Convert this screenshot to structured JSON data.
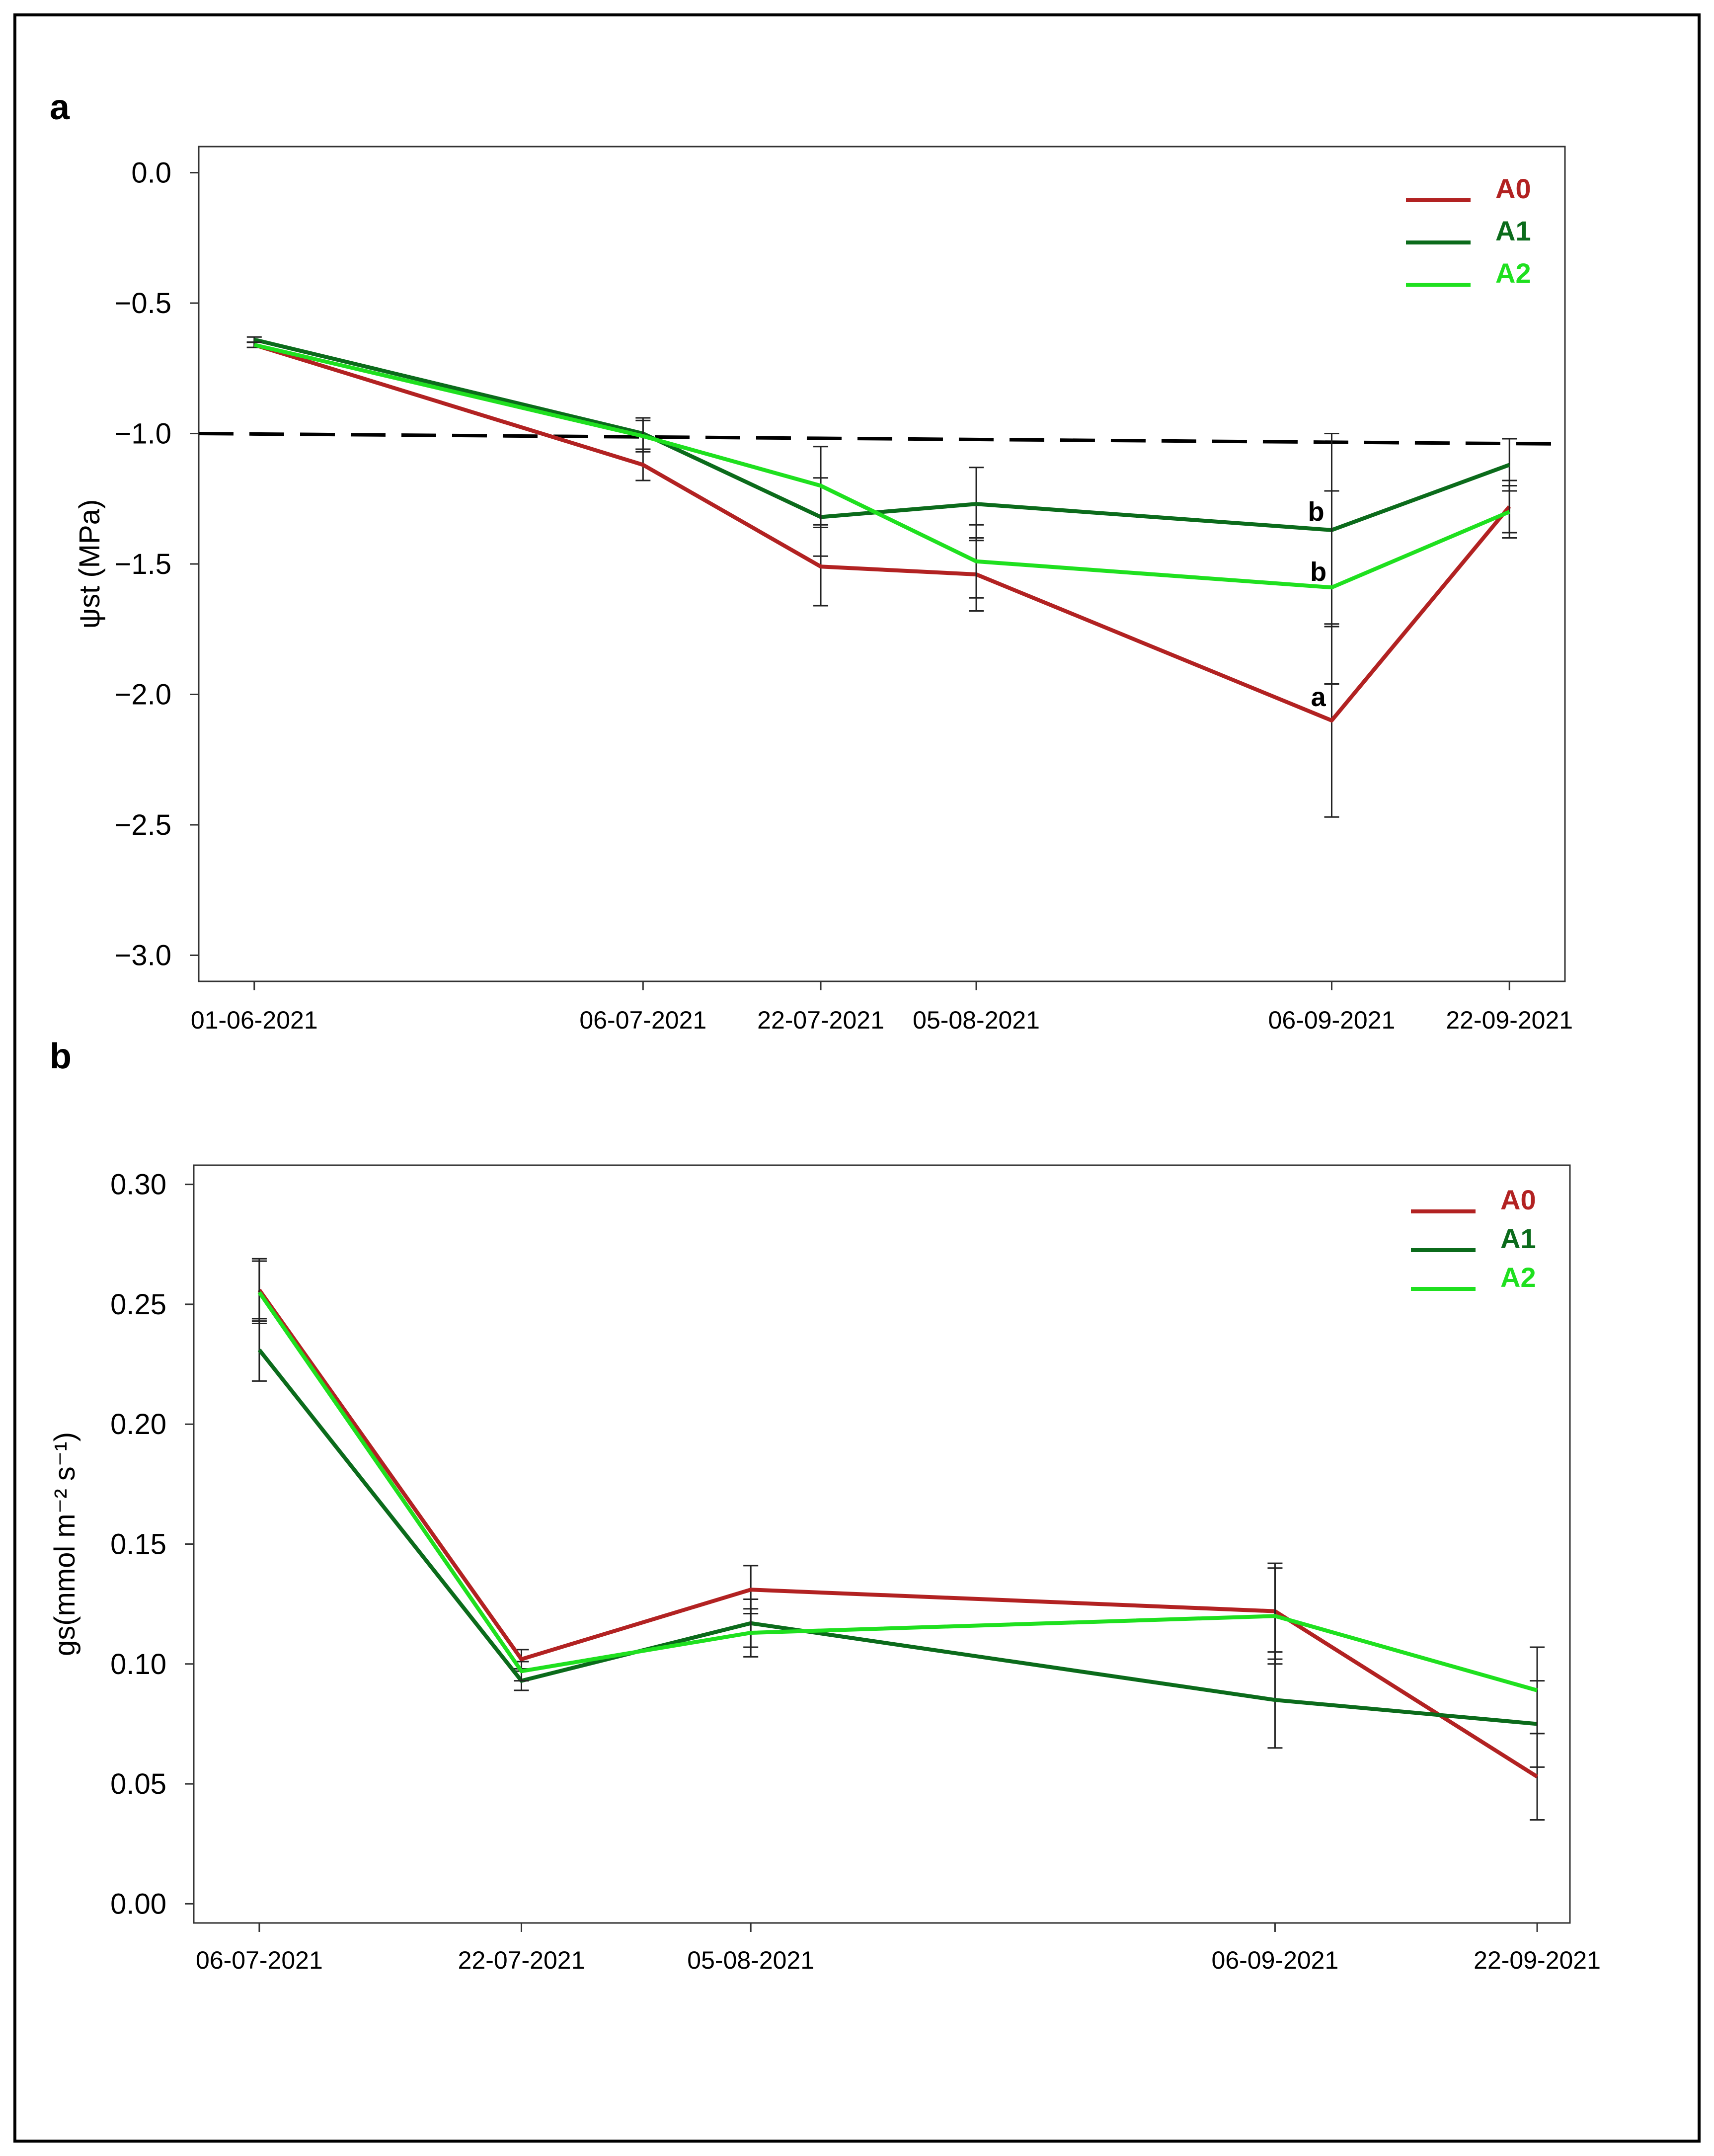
{
  "colors": {
    "A0": "#b22222",
    "A1": "#0b6b1b",
    "A2": "#1fe01f",
    "threshold": "#000000",
    "errorbar": "#222222"
  },
  "chart_data": [
    {
      "panel_label": "a",
      "type": "line",
      "title": "",
      "xlabel": "",
      "ylabel": "ψst (MPa)",
      "ylim": [
        -3.1,
        0.1
      ],
      "yticks": [
        0.0,
        -0.5,
        -1.0,
        -1.5,
        -2.0,
        -2.5,
        -3.0
      ],
      "ytick_labels": [
        "0.0",
        "−0.5",
        "−1.0",
        "−1.5",
        "−2.0",
        "−2.5",
        "−3.0"
      ],
      "x_day_range": [
        -5,
        118
      ],
      "categories": [
        "01-06-2021",
        "06-07-2021",
        "22-07-2021",
        "05-08-2021",
        "06-09-2021",
        "22-09-2021"
      ],
      "x_days": [
        0,
        35,
        51,
        65,
        97,
        113
      ],
      "legend_position": "top-right",
      "series": [
        {
          "name": "A0",
          "color_key": "A0",
          "values": [
            -0.66,
            -1.12,
            -1.51,
            -1.54,
            -2.1,
            -1.28
          ],
          "errors": [
            0.01,
            0.06,
            0.15,
            0.14,
            0.37,
            0.1
          ]
        },
        {
          "name": "A1",
          "color_key": "A1",
          "values": [
            -0.64,
            -1.0,
            -1.32,
            -1.27,
            -1.37,
            -1.12
          ],
          "errors": [
            0.01,
            0.06,
            0.15,
            0.14,
            0.37,
            0.1
          ]
        },
        {
          "name": "A2",
          "color_key": "A2",
          "values": [
            -0.66,
            -1.01,
            -1.2,
            -1.49,
            -1.59,
            -1.3
          ],
          "errors": [
            0.01,
            0.06,
            0.15,
            0.14,
            0.37,
            0.1
          ]
        }
      ],
      "reference_line": {
        "x_days": [
          -5,
          118
        ],
        "values": [
          -1.0,
          -1.04
        ],
        "style": "dashed"
      },
      "annotations": [
        {
          "text": "b",
          "x_day": 95.6,
          "y": -1.3
        },
        {
          "text": "b",
          "x_day": 95.8,
          "y": -1.53
        },
        {
          "text": "a",
          "x_day": 95.8,
          "y": -2.01
        }
      ]
    },
    {
      "panel_label": "b",
      "type": "line",
      "title": "",
      "xlabel": "",
      "ylabel": "gs(mmol m⁻² s⁻¹)",
      "ylim": [
        -0.008,
        0.308
      ],
      "yticks": [
        0.0,
        0.05,
        0.1,
        0.15,
        0.2,
        0.25,
        0.3
      ],
      "ytick_labels": [
        "0.00",
        "0.05",
        "0.10",
        "0.15",
        "0.20",
        "0.25",
        "0.30"
      ],
      "x_day_range": [
        -4,
        80
      ],
      "categories": [
        "06-07-2021",
        "22-07-2021",
        "05-08-2021",
        "06-09-2021",
        "22-09-2021"
      ],
      "x_days": [
        0,
        16,
        30,
        62,
        78
      ],
      "legend_position": "top-right",
      "series": [
        {
          "name": "A0",
          "color_key": "A0",
          "values": [
            0.256,
            0.102,
            0.131,
            0.122,
            0.053
          ],
          "errors": [
            0.013,
            0.004,
            0.01,
            0.02,
            0.018
          ]
        },
        {
          "name": "A1",
          "color_key": "A1",
          "values": [
            0.231,
            0.093,
            0.117,
            0.085,
            0.075
          ],
          "errors": [
            0.013,
            0.004,
            0.01,
            0.02,
            0.018
          ]
        },
        {
          "name": "A2",
          "color_key": "A2",
          "values": [
            0.255,
            0.097,
            0.113,
            0.12,
            0.089
          ],
          "errors": [
            0.013,
            0.004,
            0.01,
            0.02,
            0.018
          ]
        }
      ]
    }
  ]
}
